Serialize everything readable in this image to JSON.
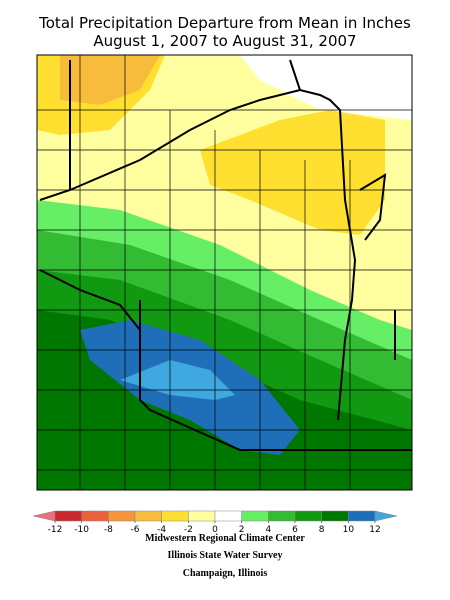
{
  "title": [
    "Total Precipitation Departure from Mean in Inches",
    "August 1, 2007 to August 31, 2007"
  ],
  "legend": {
    "ticks": [
      -12,
      -10,
      -8,
      -6,
      -4,
      -2,
      0,
      2,
      4,
      6,
      8,
      10,
      12
    ],
    "colors": [
      "#e8707a",
      "#c8282c",
      "#e8603c",
      "#f5943c",
      "#f8bc3c",
      "#ffe030",
      "#ffffa0",
      "#ffffff",
      "#66ee66",
      "#33bb33",
      "#119911",
      "#007700",
      "#1e6fb8",
      "#40a8e0"
    ]
  },
  "credits": [
    "Midwestern Regional Climate Center",
    "Illinois State Water Survey",
    "Champaign, Illinois"
  ]
}
